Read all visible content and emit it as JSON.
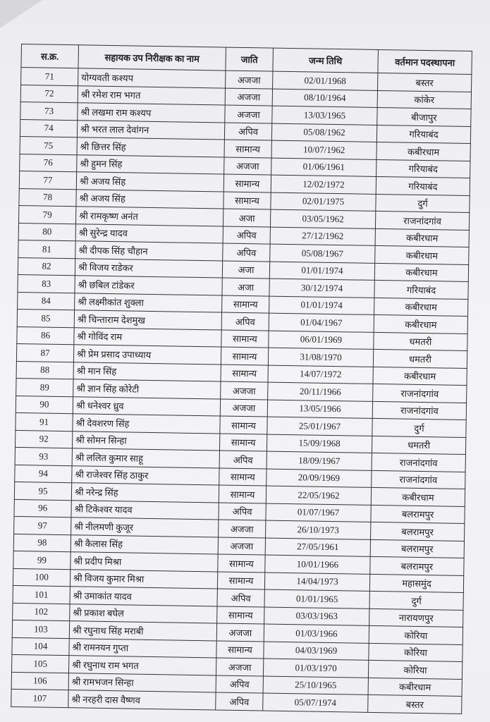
{
  "headers": [
    "स.क्र.",
    "सहायक उप निरीक्षक का नाम",
    "जाति",
    "जन्म तिथि",
    "वर्तमान पदस्थापना"
  ],
  "rows": [
    [
      "71",
      "योग्यवती कश्यप",
      "अजजा",
      "02/01/1968",
      "बस्तर"
    ],
    [
      "72",
      "श्री रमेश राम भगत",
      "अजजा",
      "08/10/1964",
      "कांकेर"
    ],
    [
      "73",
      "श्री लखमा राम कश्यप",
      "अजजा",
      "13/03/1965",
      "बीजापुर"
    ],
    [
      "74",
      "श्री भरत लाल देवांगन",
      "अपिव",
      "05/08/1962",
      "गरियाबंद"
    ],
    [
      "75",
      "श्री छित्तर सिंह",
      "सामान्य",
      "10/07/1962",
      "कबीरधाम"
    ],
    [
      "76",
      "श्री हुमन सिंह",
      "अजजा",
      "01/06/1961",
      "गरियाबंद"
    ],
    [
      "77",
      "श्री अजय सिंह",
      "सामान्य",
      "12/02/1972",
      "गरियाबंद"
    ],
    [
      "78",
      "श्री अजय सिंह",
      "सामान्य",
      "02/01/1975",
      "दुर्ग"
    ],
    [
      "79",
      "श्री रामकृष्ण अनंत",
      "अजा",
      "03/05/1962",
      "राजनांदगांव"
    ],
    [
      "80",
      "श्री सुरेन्द्र यादव",
      "अपिव",
      "27/12/1962",
      "कबीरधाम"
    ],
    [
      "81",
      "श्री दीपक सिंह चौहान",
      "अपिव",
      "05/08/1967",
      "कबीरधाम"
    ],
    [
      "82",
      "श्री विजय राडेकर",
      "अजा",
      "01/01/1974",
      "कबीरधाम"
    ],
    [
      "83",
      "श्री छबिल टांडेकर",
      "अजा",
      "30/12/1974",
      "गरियाबंद"
    ],
    [
      "84",
      "श्री लक्ष्मीकांत शुक्ला",
      "सामान्य",
      "01/01/1974",
      "कबीरधाम"
    ],
    [
      "85",
      "श्री चिन्ताराम देशमुख",
      "अपिव",
      "01/04/1967",
      "कबीरधाम"
    ],
    [
      "86",
      "श्री गोविंद राम",
      "सामान्य",
      "06/01/1969",
      "धमतरी"
    ],
    [
      "87",
      "श्री प्रेम प्रसाद उपाध्याय",
      "सामान्य",
      "31/08/1970",
      "धमतरी"
    ],
    [
      "88",
      "श्री मान सिंह",
      "सामान्य",
      "14/07/1972",
      "कबीरधाम"
    ],
    [
      "89",
      "श्री ज्ञान सिंह कोरेटी",
      "अजजा",
      "20/11/1966",
      "राजनांदगांव"
    ],
    [
      "90",
      "श्री धनेश्वर ध्रुव",
      "अजजा",
      "13/05/1966",
      "राजनांदगांव"
    ],
    [
      "91",
      "श्री देवशरण सिंह",
      "सामान्य",
      "25/01/1967",
      "दुर्ग"
    ],
    [
      "92",
      "श्री सोमन सिन्हा",
      "सामान्य",
      "15/09/1968",
      "धमतरी"
    ],
    [
      "93",
      "श्री ललित कुमार साहू",
      "अपिव",
      "18/09/1967",
      "राजनांदगांव"
    ],
    [
      "94",
      "श्री राजेश्वर सिंह ठाकुर",
      "सामान्य",
      "20/09/1969",
      "राजनांदगांव"
    ],
    [
      "95",
      "श्री नरेन्द्र सिंह",
      "सामान्य",
      "22/05/1962",
      "कबीरधाम"
    ],
    [
      "96",
      "श्री टिकेश्वर यादव",
      "अपिव",
      "01/07/1967",
      "बलरामपुर"
    ],
    [
      "97",
      "श्री नीलमणी कुजूर",
      "अजजा",
      "26/10/1973",
      "बलरामपुर"
    ],
    [
      "98",
      "श्री कैलास सिंह",
      "अजजा",
      "27/05/1961",
      "बलरामपुर"
    ],
    [
      "99",
      "श्री प्रदीप मिश्रा",
      "सामान्य",
      "10/01/1966",
      "बलरामपुर"
    ],
    [
      "100",
      "श्री विजय कुमार मिश्रा",
      "सामान्य",
      "14/04/1973",
      "महासमुंद"
    ],
    [
      "101",
      "श्री उमाकांत यादव",
      "अपिव",
      "01/01/1965",
      "दुर्ग"
    ],
    [
      "102",
      "श्री प्रकाश बघेल",
      "सामान्य",
      "03/03/1963",
      "नारायणपुर"
    ],
    [
      "103",
      "श्री रघुनाथ सिंह मराबी",
      "अजजा",
      "01/03/1966",
      "कोरिया"
    ],
    [
      "104",
      "श्री रामनयन गुप्ता",
      "सामान्य",
      "04/03/1969",
      "कोरिया"
    ],
    [
      "105",
      "श्री रघुनाथ राम भगत",
      "अजजा",
      "01/03/1970",
      "कोरिया"
    ],
    [
      "106",
      "श्री रामभजन सिन्हा",
      "अपिव",
      "25/10/1965",
      "कबीरधाम"
    ],
    [
      "107",
      "श्री नरहरी दास वैष्णव",
      "अपिव",
      "05/07/1974",
      "बस्तर"
    ]
  ]
}
